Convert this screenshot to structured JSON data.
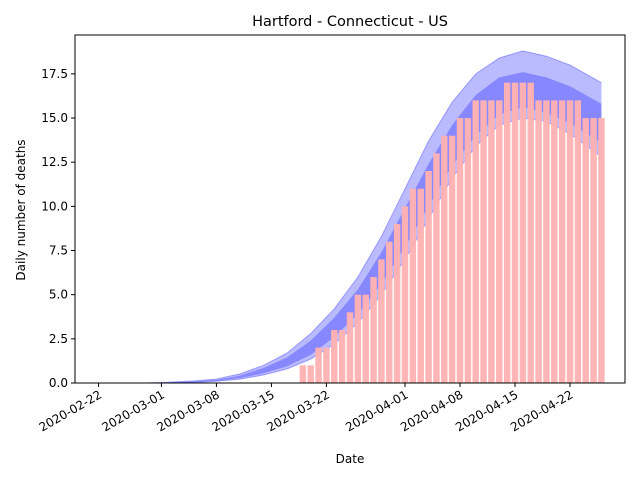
{
  "chart_data": {
    "type": "bar",
    "title": "Hartford - Connecticut - US",
    "xlabel": "Date",
    "ylabel": "Daily number of deaths",
    "xlim": [
      "2020-02-19",
      "2020-04-29"
    ],
    "ylim": [
      0,
      19.7
    ],
    "x_ticks": [
      "2020-02-22",
      "2020-03-01",
      "2020-03-08",
      "2020-03-15",
      "2020-03-22",
      "2020-04-01",
      "2020-04-08",
      "2020-04-15",
      "2020-04-22"
    ],
    "y_ticks": [
      "0.0",
      "2.5",
      "5.0",
      "7.5",
      "10.0",
      "12.5",
      "15.0",
      "17.5"
    ],
    "grid": false,
    "legend": "none",
    "colors": {
      "bars": "#ffb2b2",
      "band": "#0000ff",
      "axis": "#000000"
    },
    "series": [
      {
        "type": "bar",
        "x": [
          "2020-03-19",
          "2020-03-20",
          "2020-03-21",
          "2020-03-22",
          "2020-03-23",
          "2020-03-24",
          "2020-03-25",
          "2020-03-26",
          "2020-03-27",
          "2020-03-28",
          "2020-03-29",
          "2020-03-30",
          "2020-03-31",
          "2020-04-01",
          "2020-04-02",
          "2020-04-03",
          "2020-04-04",
          "2020-04-05",
          "2020-04-06",
          "2020-04-07",
          "2020-04-08",
          "2020-04-09",
          "2020-04-10",
          "2020-04-11",
          "2020-04-12",
          "2020-04-13",
          "2020-04-14",
          "2020-04-15",
          "2020-04-16",
          "2020-04-17",
          "2020-04-18",
          "2020-04-19",
          "2020-04-20",
          "2020-04-21",
          "2020-04-22",
          "2020-04-23",
          "2020-04-24",
          "2020-04-25",
          "2020-04-26"
        ],
        "values": [
          1,
          1,
          2,
          2,
          3,
          3,
          4,
          5,
          5,
          6,
          7,
          8,
          9,
          10,
          11,
          11,
          12,
          13,
          14,
          14,
          15,
          15,
          16,
          16,
          16,
          16,
          17,
          17,
          17,
          17,
          16,
          16,
          16,
          16,
          16,
          16,
          15,
          15,
          15
        ]
      },
      {
        "type": "band",
        "x": [
          "2020-02-28",
          "2020-03-02",
          "2020-03-05",
          "2020-03-08",
          "2020-03-11",
          "2020-03-14",
          "2020-03-17",
          "2020-03-20",
          "2020-03-23",
          "2020-03-26",
          "2020-03-29",
          "2020-04-01",
          "2020-04-04",
          "2020-04-07",
          "2020-04-10",
          "2020-04-13",
          "2020-04-16",
          "2020-04-19",
          "2020-04-22",
          "2020-04-26"
        ],
        "mean": [
          0,
          0.02,
          0.06,
          0.15,
          0.35,
          0.7,
          1.2,
          2.0,
          3.1,
          4.6,
          6.5,
          8.8,
          11.2,
          13.5,
          15.3,
          16.5,
          16.9,
          16.6,
          16.0,
          15.0
        ],
        "inner_lower": [
          0,
          0.01,
          0.04,
          0.12,
          0.28,
          0.55,
          0.95,
          1.6,
          2.6,
          3.9,
          5.6,
          7.7,
          10.0,
          12.3,
          14.0,
          15.2,
          15.6,
          15.3,
          14.7,
          13.6
        ],
        "inner_upper": [
          0,
          0.03,
          0.08,
          0.18,
          0.42,
          0.85,
          1.45,
          2.4,
          3.7,
          5.3,
          7.4,
          9.9,
          12.4,
          14.6,
          16.3,
          17.3,
          17.6,
          17.3,
          16.8,
          15.8
        ],
        "outer_lower": [
          0,
          0,
          0.03,
          0.1,
          0.22,
          0.45,
          0.8,
          1.35,
          2.2,
          3.4,
          5.0,
          7.0,
          9.3,
          11.6,
          13.4,
          14.6,
          15.0,
          14.8,
          14.1,
          12.8
        ],
        "outer_upper": [
          0,
          0.05,
          0.11,
          0.23,
          0.52,
          1.0,
          1.7,
          2.8,
          4.2,
          6.0,
          8.3,
          11.0,
          13.7,
          15.9,
          17.5,
          18.4,
          18.8,
          18.5,
          18.0,
          17.0
        ]
      }
    ]
  }
}
